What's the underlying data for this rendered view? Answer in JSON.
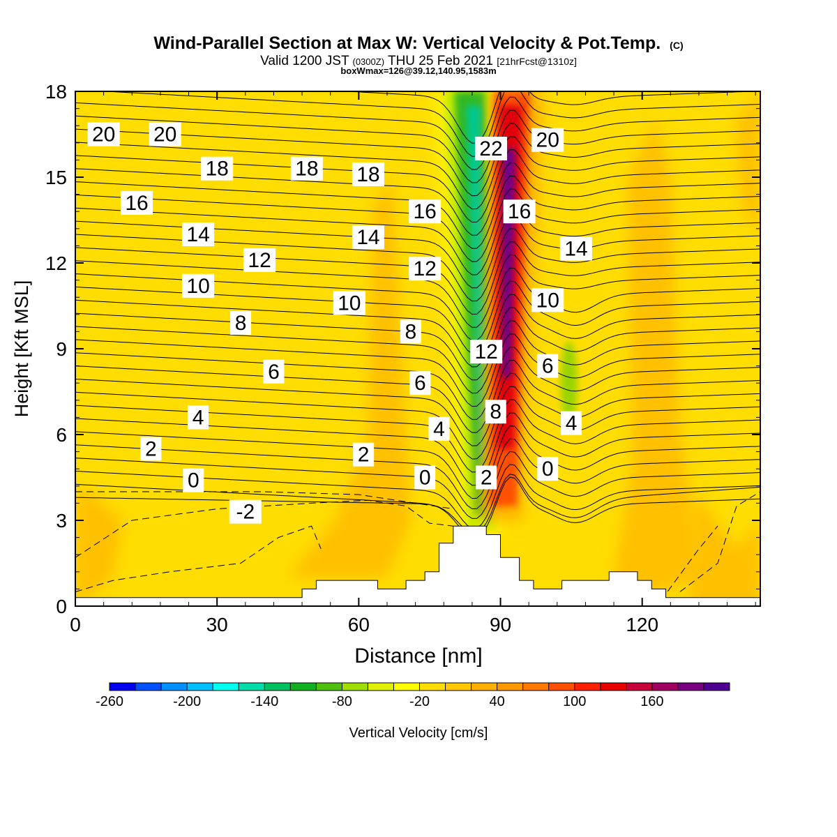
{
  "chart_data": {
    "type": "heatmap",
    "title": "Wind-Parallel Section at Max W: Vertical Velocity & Pot.Temp.",
    "title_mark": "(C)",
    "subtitle_parts": [
      "Valid 1200 JST",
      "(0300Z)",
      "THU 25 Feb 2021",
      "[21hrFcst@1310z]"
    ],
    "subtitle2": "boxWmax=126@39.12,140.95,1583m",
    "xlabel": "Distance [nm]",
    "ylabel": "Height [Kft MSL]",
    "xlim": [
      0,
      145
    ],
    "ylim": [
      0,
      18
    ],
    "xticks": [
      0,
      30,
      60,
      90,
      120
    ],
    "yticks": [
      0,
      3,
      6,
      9,
      12,
      15,
      18
    ],
    "grid": false,
    "colorbar": {
      "label": "Vertical Velocity [cm/s]",
      "ticks": [
        "-260",
        "-200",
        "-140",
        "-80",
        "-20",
        "40",
        "100",
        "160"
      ],
      "colors": [
        "#0000ee",
        "#0050ff",
        "#0090ff",
        "#00c0ff",
        "#00ffee",
        "#00ddaa",
        "#00c060",
        "#10b020",
        "#50c010",
        "#a0dd00",
        "#e0f000",
        "#ffff00",
        "#ffdd00",
        "#ffc800",
        "#ffb000",
        "#ff9800",
        "#ff7800",
        "#ff5000",
        "#ff2000",
        "#e80000",
        "#c8003a",
        "#a00060",
        "#780080",
        "#500090"
      ]
    },
    "velocity_fields": [
      {
        "kind": "updraft",
        "x": [
          90,
          93
        ],
        "y": [
          2.5,
          18
        ],
        "min_cm_s": 40,
        "max_cm_s": 180
      },
      {
        "kind": "downdraft",
        "x": [
          80,
          87
        ],
        "y": [
          2,
          18
        ],
        "min_cm_s": -160,
        "max_cm_s": -40
      },
      {
        "kind": "weak_updraft",
        "x": [
          63,
          67
        ],
        "y": [
          3,
          15
        ],
        "max_cm_s": 20
      },
      {
        "kind": "weak_downdraft",
        "x": [
          102,
          106
        ],
        "y": [
          5,
          10
        ],
        "min_cm_s": -80
      }
    ],
    "terrain": {
      "x": [
        0,
        48,
        48,
        51,
        51,
        54,
        54,
        64,
        64,
        70,
        70,
        74,
        74,
        77,
        77,
        80,
        80,
        84,
        84,
        87,
        87,
        90,
        90,
        94,
        94,
        97,
        97,
        103,
        103,
        113,
        113,
        119,
        119,
        122,
        122,
        125,
        125,
        145
      ],
      "y": [
        0.3,
        0.3,
        0.6,
        0.6,
        0.9,
        0.9,
        0.9,
        0.9,
        0.6,
        0.6,
        0.9,
        0.9,
        1.2,
        1.2,
        2.2,
        2.2,
        2.8,
        2.8,
        2.8,
        2.8,
        2.5,
        2.5,
        1.7,
        1.7,
        0.9,
        0.9,
        0.6,
        0.6,
        0.9,
        0.9,
        1.2,
        1.2,
        0.9,
        0.9,
        0.6,
        0.6,
        0.3,
        0.3
      ]
    },
    "isentrope_labels": [
      {
        "text": "20",
        "x": 6,
        "y": 16.5
      },
      {
        "text": "20",
        "x": 19,
        "y": 16.5
      },
      {
        "text": "18",
        "x": 30,
        "y": 15.3
      },
      {
        "text": "18",
        "x": 49,
        "y": 15.3
      },
      {
        "text": "18",
        "x": 62,
        "y": 15.1
      },
      {
        "text": "16",
        "x": 13,
        "y": 14.1
      },
      {
        "text": "14",
        "x": 26,
        "y": 13.0
      },
      {
        "text": "14",
        "x": 62,
        "y": 12.9
      },
      {
        "text": "12",
        "x": 39,
        "y": 12.1
      },
      {
        "text": "10",
        "x": 26,
        "y": 11.2
      },
      {
        "text": "10",
        "x": 58,
        "y": 10.6
      },
      {
        "text": "8",
        "x": 35,
        "y": 9.9
      },
      {
        "text": "6",
        "x": 42,
        "y": 8.2
      },
      {
        "text": "4",
        "x": 26,
        "y": 6.6
      },
      {
        "text": "2",
        "x": 16,
        "y": 5.5
      },
      {
        "text": "0",
        "x": 25,
        "y": 4.4
      },
      {
        "text": "-2",
        "x": 36,
        "y": 3.3
      },
      {
        "text": "2",
        "x": 61,
        "y": 5.3
      },
      {
        "text": "0",
        "x": 74,
        "y": 4.5
      },
      {
        "text": "4",
        "x": 77,
        "y": 6.2
      },
      {
        "text": "6",
        "x": 73,
        "y": 7.8
      },
      {
        "text": "8",
        "x": 71,
        "y": 9.6
      },
      {
        "text": "12",
        "x": 74,
        "y": 11.8
      },
      {
        "text": "16",
        "x": 74,
        "y": 13.8
      },
      {
        "text": "12",
        "x": 87,
        "y": 8.9
      },
      {
        "text": "8",
        "x": 89,
        "y": 6.8
      },
      {
        "text": "2",
        "x": 87,
        "y": 4.5
      },
      {
        "text": "22",
        "x": 88,
        "y": 16.0
      },
      {
        "text": "16",
        "x": 94,
        "y": 13.8
      },
      {
        "text": "20",
        "x": 100,
        "y": 16.3
      },
      {
        "text": "14",
        "x": 106,
        "y": 12.5
      },
      {
        "text": "10",
        "x": 100,
        "y": 10.7
      },
      {
        "text": "6",
        "x": 100,
        "y": 8.4
      },
      {
        "text": "4",
        "x": 105,
        "y": 6.4
      },
      {
        "text": "0",
        "x": 100,
        "y": 4.8
      }
    ]
  }
}
